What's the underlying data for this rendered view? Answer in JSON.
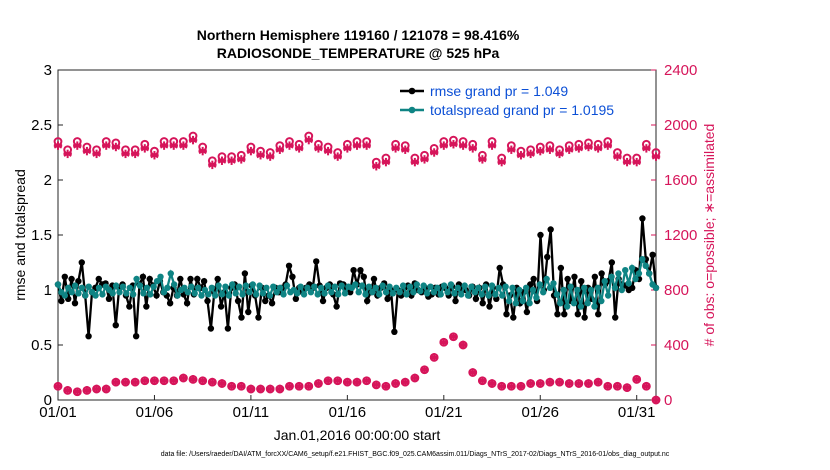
{
  "chart_data": {
    "type": "line",
    "title": "Northern Hemisphere 119160 / 121078 = 98.416%",
    "subtitle": "RADIOSONDE_TEMPERATURE @ 525 hPa",
    "xlabel": "Jan.01,2016 00:00:00 start",
    "ylabel": "rmse and totalspread",
    "y2label": "# of obs: o=possible; ∗=assimilated",
    "xticks": [
      "01/01",
      "01/06",
      "01/11",
      "01/16",
      "01/21",
      "01/26",
      "01/31"
    ],
    "xlim": [
      0,
      31
    ],
    "ylim": [
      0,
      3
    ],
    "yticks": [
      "0",
      "0.5",
      "1",
      "1.5",
      "2",
      "2.5",
      "3"
    ],
    "y2lim": [
      0,
      2400
    ],
    "y2ticks": [
      "0",
      "400",
      "800",
      "1200",
      "1600",
      "2000",
      "2400"
    ],
    "legend_position": "top-right",
    "series": [
      {
        "name": "rmse grand pr = 1.049",
        "color": "#000000",
        "axis": "left",
        "values": [
          1.05,
          0.9,
          1.12,
          0.92,
          1.1,
          0.88,
          1.08,
          1.25,
          0.95,
          0.58,
          0.98,
          1.02,
          1.1,
          1.05,
          1.06,
          0.92,
          1.04,
          0.68,
          1.02,
          1.05,
          0.95,
          0.85,
          1.04,
          0.58,
          1.05,
          1.12,
          0.85,
          1.1,
          1.04,
          0.95,
          1.08,
          0.98,
          0.95,
          0.88,
          1.02,
          0.95,
          1.1,
          0.96,
          0.88,
          1.1,
          0.96,
          1.1,
          1.02,
          1.08,
          0.9,
          0.65,
          0.98,
          1.1,
          0.85,
          0.98,
          0.65,
          1.02,
          1.05,
          0.9,
          0.75,
          1.15,
          0.8,
          1.04,
          0.95,
          0.75,
          1.02,
          0.9,
          0.95,
          0.88,
          1.02,
          0.98,
          1.02,
          1.05,
          1.22,
          1.12,
          0.92,
          1.02,
          0.98,
          1.02,
          1.05,
          1.02,
          1.26,
          1.04,
          0.9,
          1.02,
          1.05,
          0.96,
          0.85,
          1.06,
          1.05,
          1.02,
          0.98,
          1.18,
          1.05,
          1.18,
          1.12,
          0.9,
          0.98,
          1.1,
          0.95,
          1.02,
          1.06,
          0.92,
          1.0,
          0.62,
          1.0,
          0.95,
          1.02,
          1.04,
          0.95,
          1.06,
          1.0,
          0.98,
          1.02,
          0.94,
          0.96,
          1.02,
          0.96,
          1.03,
          1.02,
          0.95,
          1.03,
          0.9,
          1.05,
          1.0,
          1.0,
          0.95,
          1.03,
          0.92,
          1.02,
          0.88,
          1.05,
          0.85,
          1.02,
          0.92,
          1.2,
          1.05,
          0.78,
          0.95,
          0.75,
          1.02,
          0.88,
          0.98,
          0.8,
          1.05,
          1.1,
          0.9,
          1.5,
          1.0,
          1.3,
          1.55,
          0.95,
          0.78,
          1.2,
          0.78,
          1.1,
          0.9,
          1.12,
          0.78,
          1.08,
          0.75,
          1.02,
          0.92,
          1.12,
          0.78,
          1.15,
          1.05,
          1.08,
          1.25,
          0.75,
          1.1,
          1.05,
          1.04,
          1.0,
          1.02,
          1.18,
          1.1,
          1.65,
          1.28,
          1.15,
          1.32,
          1.02
        ]
      },
      {
        "name": "totalspread grand pr = 1.0195",
        "color": "#0f8484",
        "axis": "left",
        "values": [
          1.05,
          0.98,
          0.95,
          1.02,
          0.98,
          1.04,
          0.97,
          1.02,
          0.95,
          1.03,
          0.98,
          0.95,
          1.02,
          0.96,
          1.03,
          1.0,
          0.97,
          1.04,
          0.98,
          1.03,
          0.97,
          1.02,
          0.96,
          1.1,
          1.04,
          0.97,
          1.02,
          0.96,
          1.03,
          1.08,
          1.12,
          0.98,
          1.02,
          1.15,
          1.05,
          0.95,
          1.0,
          1.02,
          0.98,
          1.03,
          0.97,
          1.02,
          0.95,
          1.0,
          0.96,
          1.02,
          0.95,
          1.04,
          0.96,
          1.03,
          0.95,
          1.05,
          0.97,
          1.03,
          0.96,
          1.04,
          0.98,
          1.05,
          0.96,
          1.04,
          0.97,
          1.02,
          0.95,
          1.03,
          0.98,
          1.02,
          0.96,
          1.04,
          0.98,
          1.0,
          0.97,
          1.03,
          0.96,
          1.02,
          0.98,
          1.03,
          0.96,
          1.02,
          0.97,
          1.04,
          0.98,
          1.03,
          0.96,
          1.04,
          0.97,
          1.03,
          1.02,
          1.05,
          0.98,
          1.04,
          0.96,
          1.03,
          0.98,
          1.02,
          0.96,
          1.04,
          0.98,
          1.03,
          0.97,
          1.02,
          0.98,
          1.04,
          0.96,
          1.03,
          0.98,
          1.05,
          0.99,
          1.04,
          0.97,
          1.03,
          0.98,
          1.02,
          0.96,
          1.04,
          0.98,
          1.05,
          0.97,
          1.02,
          0.96,
          1.04,
          0.95,
          1.03,
          0.98,
          1.02,
          0.96,
          1.03,
          0.95,
          1.04,
          0.96,
          1.02,
          0.95,
          1.03,
          0.9,
          1.02,
          0.88,
          1.0,
          0.9,
          1.02,
          0.88,
          1.0,
          0.93,
          1.05,
          0.98,
          1.1,
          1.02,
          1.06,
          0.96,
          0.88,
          1.0,
          0.85,
          1.03,
          0.88,
          1.0,
          0.85,
          1.02,
          0.88,
          1.0,
          0.85,
          1.02,
          0.9,
          1.08,
          0.95,
          1.12,
          1.02,
          1.15,
          1.0,
          1.18,
          1.06,
          1.2,
          1.1,
          1.15,
          1.28,
          1.22,
          1.15,
          1.05,
          1.02
        ]
      },
      {
        "name": "possible",
        "marker": "o",
        "color": "#d6155a",
        "axis": "right",
        "x": [
          0,
          0.5,
          1,
          1.5,
          2,
          2.5,
          3,
          3.5,
          4,
          4.5,
          5,
          5.5,
          6,
          6.5,
          7,
          7.5,
          8,
          8.5,
          9,
          9.5,
          10,
          10.5,
          11,
          11.5,
          12,
          12.5,
          13,
          13.5,
          14,
          14.5,
          15,
          15.5,
          16,
          16.5,
          17,
          17.5,
          18,
          18.5,
          19,
          19.5,
          20,
          20.5,
          21,
          21.5,
          22,
          22.5,
          23,
          23.5,
          24,
          24.5,
          25,
          25.5,
          26,
          26.5,
          27,
          27.5,
          28,
          28.5,
          29,
          29.5,
          30,
          30.5,
          31
        ],
        "values": [
          1880,
          1820,
          1880,
          1840,
          1820,
          1880,
          1870,
          1820,
          1820,
          1860,
          1810,
          1880,
          1880,
          1880,
          1920,
          1840,
          1740,
          1770,
          1770,
          1780,
          1840,
          1810,
          1800,
          1850,
          1880,
          1860,
          1920,
          1860,
          1840,
          1800,
          1860,
          1880,
          1880,
          1730,
          1760,
          1860,
          1850,
          1760,
          1780,
          1830,
          1880,
          1890,
          1880,
          1860,
          1780,
          1880,
          1760,
          1850,
          1810,
          1820,
          1840,
          1850,
          1820,
          1850,
          1860,
          1870,
          1860,
          1880,
          1800,
          1760,
          1760,
          1860,
          1800
        ],
        "values_low": [
          100,
          70,
          60,
          70,
          80,
          80,
          130,
          130,
          130,
          140,
          140,
          140,
          140,
          160,
          150,
          140,
          130,
          120,
          100,
          100,
          80,
          80,
          80,
          80,
          100,
          100,
          100,
          120,
          140,
          140,
          130,
          130,
          140,
          110,
          100,
          120,
          130,
          160,
          220,
          310,
          420,
          460,
          400,
          200,
          140,
          120,
          100,
          100,
          100,
          120,
          120,
          130,
          130,
          120,
          120,
          120,
          130,
          100,
          100,
          90,
          150,
          100,
          0
        ]
      },
      {
        "name": "assimilated",
        "marker": "*",
        "color": "#d6155a",
        "axis": "right",
        "x": [
          0,
          0.5,
          1,
          1.5,
          2,
          2.5,
          3,
          3.5,
          4,
          4.5,
          5,
          5.5,
          6,
          6.5,
          7,
          7.5,
          8,
          8.5,
          9,
          9.5,
          10,
          10.5,
          11,
          11.5,
          12,
          12.5,
          13,
          13.5,
          14,
          14.5,
          15,
          15.5,
          16,
          16.5,
          17,
          17.5,
          18,
          18.5,
          19,
          19.5,
          20,
          20.5,
          21,
          21.5,
          22,
          22.5,
          23,
          23.5,
          24,
          24.5,
          25,
          25.5,
          26,
          26.5,
          27,
          27.5,
          28,
          28.5,
          29,
          29.5,
          30,
          30.5,
          31
        ],
        "values": [
          1850,
          1790,
          1850,
          1810,
          1790,
          1850,
          1840,
          1790,
          1790,
          1830,
          1780,
          1850,
          1850,
          1850,
          1890,
          1810,
          1710,
          1740,
          1740,
          1750,
          1810,
          1780,
          1770,
          1820,
          1850,
          1830,
          1890,
          1830,
          1810,
          1770,
          1830,
          1850,
          1850,
          1700,
          1730,
          1830,
          1820,
          1730,
          1750,
          1800,
          1850,
          1860,
          1850,
          1830,
          1750,
          1850,
          1730,
          1820,
          1780,
          1790,
          1810,
          1820,
          1790,
          1820,
          1830,
          1840,
          1830,
          1850,
          1770,
          1730,
          1730,
          1830,
          1770
        ],
        "values_low": [
          100,
          70,
          60,
          70,
          80,
          80,
          130,
          130,
          130,
          140,
          140,
          140,
          140,
          160,
          150,
          140,
          130,
          120,
          100,
          100,
          80,
          80,
          80,
          80,
          100,
          100,
          100,
          120,
          140,
          140,
          130,
          130,
          140,
          110,
          100,
          120,
          130,
          160,
          220,
          310,
          420,
          460,
          400,
          200,
          140,
          120,
          100,
          100,
          100,
          120,
          120,
          130,
          130,
          120,
          120,
          120,
          130,
          100,
          100,
          90,
          150,
          100,
          0
        ]
      }
    ]
  },
  "footnote": "data file: /Users/raeder/DAI/ATM_forcXX/CAM6_setup/f.e21.FHIST_BGC.f09_025.CAM6assim.011/Diags_NTrS_2017-02/Diags_NTrS_2016-01/obs_diag_output.nc",
  "colors": {
    "rmse": "#000000",
    "spread": "#0f8484",
    "obs": "#d6155a",
    "legend_text": "#0b4fd6"
  }
}
